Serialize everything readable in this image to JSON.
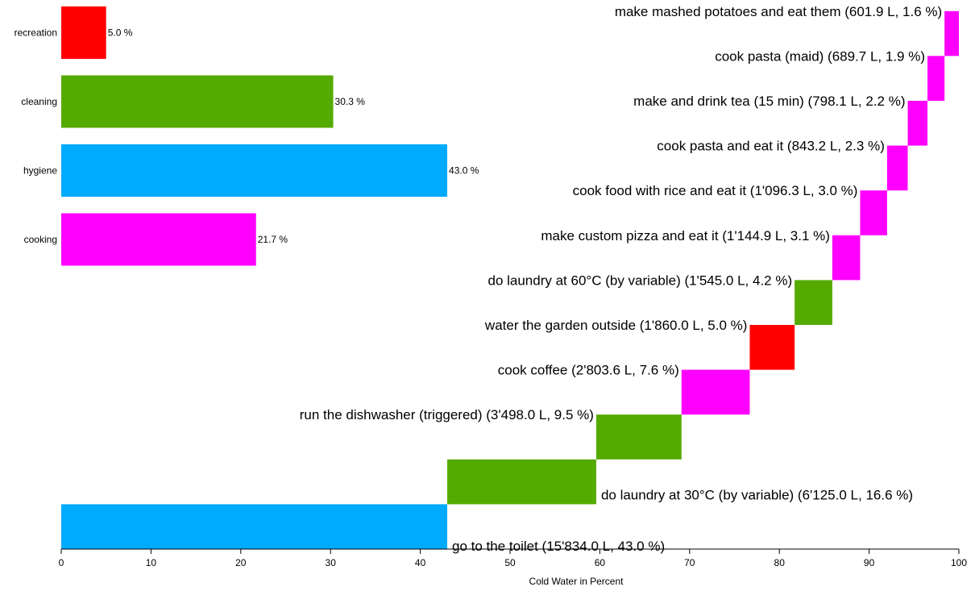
{
  "chart_data": {
    "type": "bar",
    "xlabel": "Cold Water in Percent",
    "xlim": [
      0,
      100
    ],
    "x_ticks": [
      "0",
      "10",
      "20",
      "30",
      "40",
      "50",
      "60",
      "70",
      "80",
      "90",
      "100"
    ],
    "colors": {
      "recreation": "#ff0000",
      "cleaning": "#55aa00",
      "hygiene": "#00aaff",
      "cooking": "#ff00ff"
    },
    "categories": [
      {
        "name": "recreation",
        "value": 5.0,
        "label": "5.0 %",
        "color": "#ff0000"
      },
      {
        "name": "cleaning",
        "value": 30.3,
        "label": "30.3 %",
        "color": "#55aa00"
      },
      {
        "name": "hygiene",
        "value": 43.0,
        "label": "43.0 %",
        "color": "#00aaff"
      },
      {
        "name": "cooking",
        "value": 21.7,
        "label": "21.7 %",
        "color": "#ff00ff"
      }
    ],
    "activities": [
      {
        "label": "go to the toilet (15'834.0 L, 43.0 %)",
        "value": 43.0,
        "color": "#00aaff"
      },
      {
        "label": "do laundry at 30°C (by variable) (6'125.0 L, 16.6 %)",
        "value": 16.6,
        "color": "#55aa00"
      },
      {
        "label": "run the dishwasher (triggered) (3'498.0 L, 9.5 %)",
        "value": 9.5,
        "color": "#55aa00"
      },
      {
        "label": "cook coffee (2'803.6 L, 7.6 %)",
        "value": 7.6,
        "color": "#ff00ff"
      },
      {
        "label": "water the garden outside (1'860.0 L, 5.0 %)",
        "value": 5.0,
        "color": "#ff0000"
      },
      {
        "label": "do laundry at 60°C (by variable) (1'545.0 L, 4.2 %)",
        "value": 4.2,
        "color": "#55aa00"
      },
      {
        "label": "make custom pizza and eat it (1'144.9 L, 3.1 %)",
        "value": 3.1,
        "color": "#ff00ff"
      },
      {
        "label": "cook food with rice and eat it (1'096.3 L, 3.0 %)",
        "value": 3.0,
        "color": "#ff00ff"
      },
      {
        "label": "cook pasta and eat it (843.2 L, 2.3 %)",
        "value": 2.3,
        "color": "#ff00ff"
      },
      {
        "label": "make and drink tea (15 min) (798.1 L, 2.2 %)",
        "value": 2.2,
        "color": "#ff00ff"
      },
      {
        "label": "cook pasta (maid) (689.7 L, 1.9 %)",
        "value": 1.9,
        "color": "#ff00ff"
      },
      {
        "label": "make mashed potatoes and eat them (601.9 L, 1.6 %)",
        "value": 1.6,
        "color": "#ff00ff"
      }
    ]
  }
}
